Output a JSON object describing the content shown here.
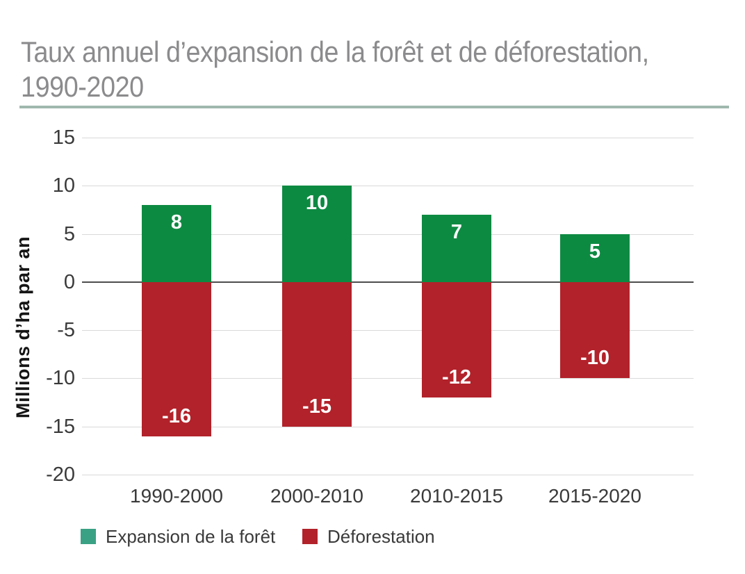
{
  "header": {
    "title_line1": "Taux annuel d’expansion de la forêt et de déforestation,",
    "title_line2": "1990-2020"
  },
  "chart_data": {
    "type": "bar",
    "subtype": "diverging-stacked",
    "categories": [
      "1990-2000",
      "2000-2010",
      "2010-2015",
      "2015-2020"
    ],
    "series": [
      {
        "name": "Expansion de la forêt",
        "values": [
          8,
          10,
          7,
          5
        ],
        "color": "#0d8a42",
        "legend_color": "#3aa184"
      },
      {
        "name": "Déforestation",
        "values": [
          -16,
          -15,
          -12,
          -10
        ],
        "color": "#b2222a",
        "legend_color": "#b2222a"
      }
    ],
    "title": "Taux annuel d’expansion de la forêt et de déforestation, 1990-2020",
    "xlabel": "",
    "ylabel": "Millions d’ha par an",
    "yticks": [
      15,
      10,
      5,
      0,
      -5,
      -10,
      -15,
      -20
    ],
    "ylim": [
      -20,
      15
    ],
    "grid": true,
    "legend_position": "bottom"
  },
  "colors": {
    "title": "#8b8b8d",
    "title_rule": "#a0b8ae",
    "grid": "#d9d9d9",
    "zero_line": "#4d4d4d",
    "axis_text": "#3a3a3a",
    "bar_label": "#ffffff"
  }
}
